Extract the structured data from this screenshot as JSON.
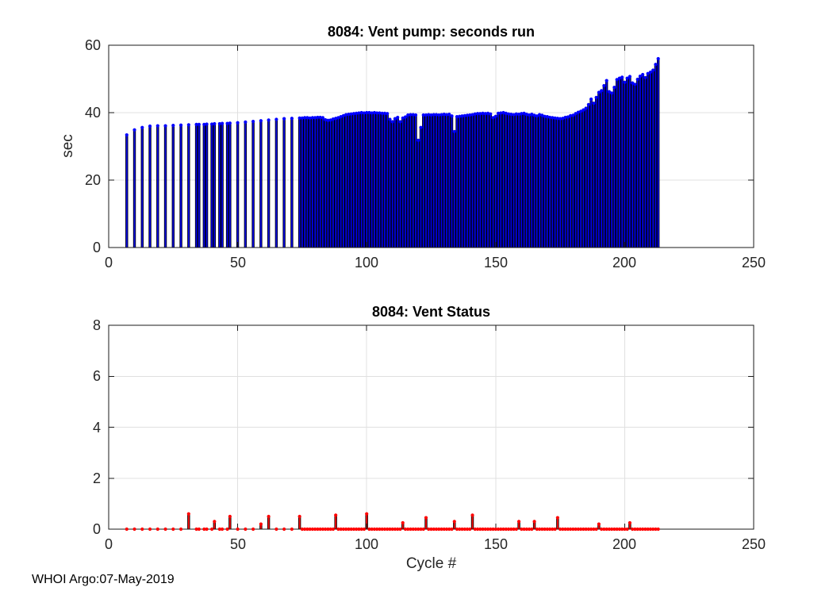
{
  "figure": {
    "footer": "WHOI Argo:07-May-2019",
    "background": "#FFFFFF",
    "grid_color": "#E0E0E0",
    "axis_color": "#1A1A1A",
    "tick_text_color": "#262626"
  },
  "chart_data": [
    {
      "type": "bar",
      "title": "8084: Vent pump: seconds run",
      "xlabel": "",
      "ylabel": "sec",
      "xlim": [
        0,
        250
      ],
      "ylim": [
        0,
        60
      ],
      "xticks": [
        0,
        50,
        100,
        150,
        200,
        250
      ],
      "yticks": [
        0,
        20,
        40,
        60
      ],
      "grid": true,
      "legend": "none",
      "bar_color": "#0000E6",
      "bar_edge_color": "#000000",
      "marker_color": "#0000FF",
      "x": [
        7,
        10,
        13,
        16,
        19,
        22,
        25,
        28,
        31,
        34,
        35,
        37,
        38,
        40,
        41,
        43,
        44,
        46,
        47,
        50,
        53,
        56,
        59,
        62,
        65,
        68,
        71,
        74,
        75,
        76,
        77,
        78,
        79,
        80,
        81,
        82,
        83,
        84,
        85,
        86,
        87,
        88,
        89,
        90,
        91,
        92,
        93,
        94,
        95,
        96,
        97,
        98,
        99,
        100,
        101,
        102,
        103,
        104,
        105,
        106,
        107,
        108,
        109,
        110,
        111,
        112,
        113,
        114,
        115,
        116,
        117,
        118,
        119,
        120,
        121,
        122,
        123,
        124,
        125,
        126,
        127,
        128,
        129,
        130,
        131,
        132,
        133,
        134,
        135,
        136,
        137,
        138,
        139,
        140,
        141,
        142,
        143,
        144,
        145,
        146,
        147,
        148,
        149,
        150,
        151,
        152,
        153,
        154,
        155,
        156,
        157,
        158,
        159,
        160,
        161,
        162,
        163,
        164,
        165,
        166,
        167,
        168,
        169,
        170,
        171,
        172,
        173,
        174,
        175,
        176,
        177,
        178,
        179,
        180,
        181,
        182,
        183,
        184,
        185,
        186,
        187,
        188,
        189,
        190,
        191,
        192,
        193,
        194,
        195,
        196,
        197,
        198,
        199,
        200,
        201,
        202,
        203,
        204,
        205,
        206,
        207,
        208,
        209,
        210,
        211,
        212,
        213
      ],
      "values": [
        33.4,
        34.9,
        35.6,
        36.0,
        36.1,
        36.1,
        36.2,
        36.3,
        36.4,
        36.5,
        36.5,
        36.5,
        36.6,
        36.6,
        36.7,
        36.7,
        36.8,
        36.8,
        36.9,
        37.0,
        37.2,
        37.4,
        37.6,
        37.8,
        38.0,
        38.2,
        38.3,
        38.4,
        38.4,
        38.5,
        38.5,
        38.4,
        38.5,
        38.5,
        38.6,
        38.6,
        38.5,
        37.9,
        37.7,
        37.8,
        38.1,
        38.3,
        38.5,
        38.8,
        39.1,
        39.4,
        39.5,
        39.6,
        39.7,
        39.8,
        39.9,
        40.0,
        39.9,
        40.0,
        40.0,
        39.9,
        40.0,
        39.9,
        39.9,
        39.8,
        39.8,
        39.7,
        38.0,
        37.3,
        38.2,
        38.6,
        37.3,
        38.4,
        38.7,
        39.3,
        39.4,
        39.4,
        39.3,
        31.8,
        35.6,
        39.3,
        39.3,
        39.4,
        39.3,
        39.4,
        39.4,
        39.3,
        39.4,
        39.5,
        39.4,
        39.5,
        39.0,
        34.4,
        38.8,
        38.9,
        39.0,
        39.1,
        39.2,
        39.3,
        39.4,
        39.6,
        39.7,
        39.7,
        39.8,
        39.7,
        39.8,
        39.6,
        38.5,
        38.9,
        39.8,
        39.9,
        40.0,
        39.8,
        39.6,
        39.5,
        39.4,
        39.6,
        39.5,
        39.7,
        39.8,
        39.5,
        39.3,
        39.5,
        39.2,
        39.0,
        39.4,
        39.2,
        38.9,
        38.8,
        38.6,
        38.5,
        38.4,
        38.3,
        38.2,
        38.3,
        38.6,
        38.7,
        39.1,
        39.2,
        39.7,
        40.1,
        40.4,
        40.8,
        41.3,
        42.4,
        44.0,
        42.8,
        44.5,
        46.0,
        46.5,
        48.0,
        49.5,
        46.2,
        45.8,
        47.5,
        49.8,
        50.2,
        50.5,
        49.0,
        50.2,
        50.7,
        48.8,
        48.4,
        49.9,
        50.8,
        51.3,
        50.4,
        51.6,
        52.0,
        52.6,
        54.3,
        56.0
      ]
    },
    {
      "type": "bar",
      "title": "8084: Vent Status",
      "xlabel": "Cycle #",
      "ylabel": "",
      "xlim": [
        0,
        250
      ],
      "ylim": [
        0,
        8
      ],
      "xticks": [
        0,
        50,
        100,
        150,
        200,
        250
      ],
      "yticks": [
        0,
        2,
        4,
        6,
        8
      ],
      "grid": true,
      "legend": "none",
      "bar_color": "#FF0000",
      "bar_edge_color": "#000000",
      "marker_color": "#FF0000",
      "x": [
        7,
        10,
        13,
        16,
        19,
        22,
        25,
        28,
        31,
        34,
        35,
        37,
        38,
        40,
        41,
        43,
        44,
        46,
        47,
        50,
        53,
        56,
        59,
        62,
        65,
        68,
        71,
        74,
        75,
        76,
        77,
        78,
        79,
        80,
        81,
        82,
        83,
        84,
        85,
        86,
        87,
        88,
        89,
        90,
        91,
        92,
        93,
        94,
        95,
        96,
        97,
        98,
        99,
        100,
        101,
        102,
        103,
        104,
        105,
        106,
        107,
        108,
        109,
        110,
        111,
        112,
        113,
        114,
        115,
        116,
        117,
        118,
        119,
        120,
        121,
        122,
        123,
        124,
        125,
        126,
        127,
        128,
        129,
        130,
        131,
        132,
        133,
        134,
        135,
        136,
        137,
        138,
        139,
        140,
        141,
        142,
        143,
        144,
        145,
        146,
        147,
        148,
        149,
        150,
        151,
        152,
        153,
        154,
        155,
        156,
        157,
        158,
        159,
        160,
        161,
        162,
        163,
        164,
        165,
        166,
        167,
        168,
        169,
        170,
        171,
        172,
        173,
        174,
        175,
        176,
        177,
        178,
        179,
        180,
        181,
        182,
        183,
        184,
        185,
        186,
        187,
        188,
        189,
        190,
        191,
        192,
        193,
        194,
        195,
        196,
        197,
        198,
        199,
        200,
        201,
        202,
        203,
        204,
        205,
        206,
        207,
        208,
        209,
        210,
        211,
        212,
        213
      ],
      "values": [
        0,
        0,
        0,
        0,
        0,
        0,
        0,
        0,
        0.6,
        0,
        0,
        0,
        0,
        0,
        0.3,
        0,
        0,
        0,
        0.5,
        0,
        0,
        0,
        0.2,
        0.5,
        0,
        0,
        0,
        0.5,
        0,
        0,
        0,
        0,
        0,
        0,
        0,
        0,
        0,
        0,
        0,
        0,
        0,
        0.55,
        0,
        0,
        0,
        0,
        0,
        0,
        0,
        0,
        0,
        0,
        0,
        0.6,
        0,
        0,
        0,
        0,
        0,
        0,
        0,
        0,
        0,
        0,
        0,
        0,
        0,
        0.25,
        0,
        0,
        0,
        0,
        0,
        0,
        0,
        0,
        0.45,
        0,
        0,
        0,
        0,
        0,
        0,
        0,
        0,
        0,
        0,
        0.3,
        0,
        0,
        0,
        0,
        0,
        0,
        0.55,
        0,
        0,
        0,
        0,
        0,
        0,
        0,
        0,
        0,
        0,
        0,
        0,
        0,
        0,
        0,
        0,
        0,
        0.3,
        0,
        0,
        0,
        0,
        0,
        0.3,
        0,
        0,
        0,
        0,
        0,
        0,
        0,
        0,
        0.45,
        0,
        0,
        0,
        0,
        0,
        0,
        0,
        0,
        0,
        0,
        0,
        0,
        0,
        0,
        0,
        0.2,
        0,
        0,
        0,
        0,
        0,
        0,
        0,
        0,
        0,
        0,
        0,
        0.25,
        0,
        0,
        0,
        0,
        0,
        0,
        0,
        0,
        0,
        0,
        0
      ]
    }
  ]
}
